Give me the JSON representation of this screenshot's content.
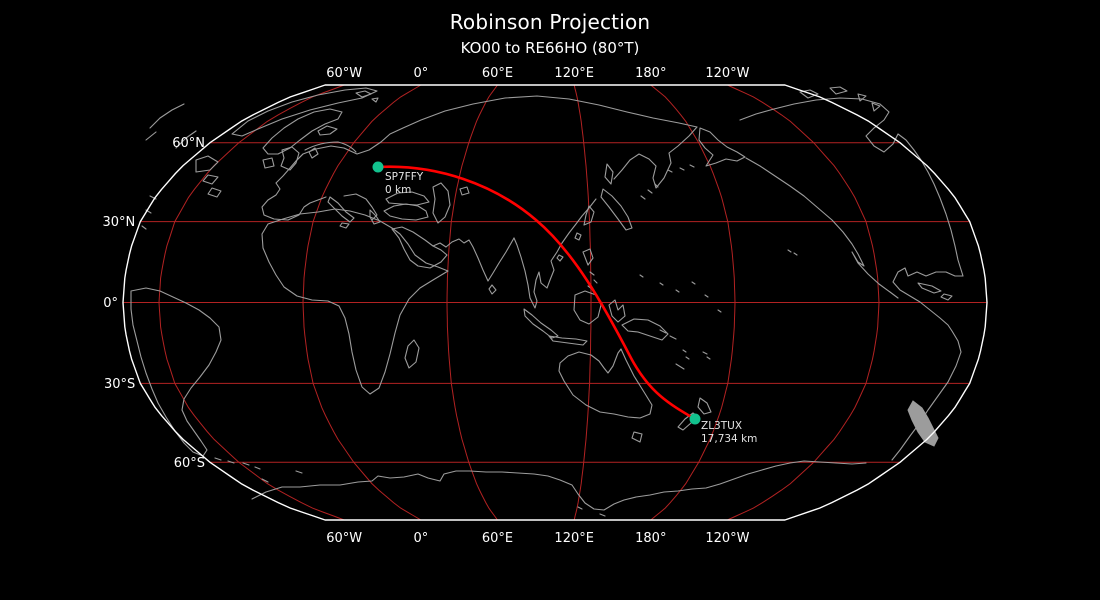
{
  "title": "Robinson Projection",
  "subtitle": "KO00 to RE66HO (80°T)",
  "axes": {
    "lon_ticks": [
      "60°W",
      "0°",
      "60°E",
      "120°E",
      "180°",
      "120°W"
    ],
    "lat_ticks": [
      "60°N",
      "30°N",
      "0°",
      "30°S",
      "60°S"
    ]
  },
  "points": [
    {
      "label": "SP7FFY",
      "distance": "0 km"
    },
    {
      "label": "ZL3TUX",
      "distance": "17,734 km"
    }
  ],
  "colors": {
    "background": "#000000",
    "graticule": "#b22222",
    "route": "#ff0000",
    "marker": "#12c28e",
    "coastline": "#9c9c9c",
    "outline": "#ffffff",
    "text": "#ffffff"
  }
}
